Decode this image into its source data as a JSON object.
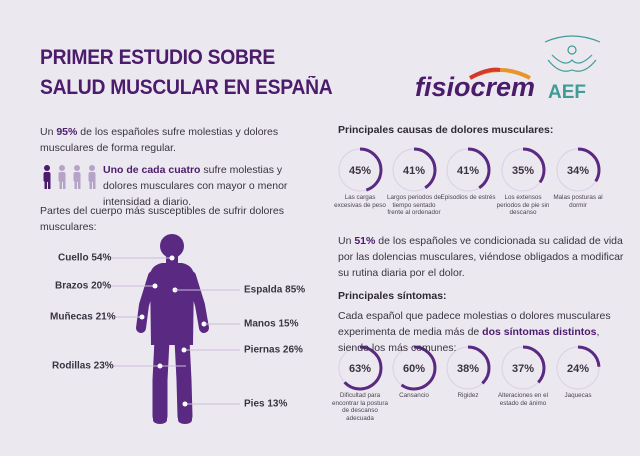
{
  "header": {
    "title_lines": [
      "PRIMER ESTUDIO SOBRE",
      "SALUD MUSCULAR EN ESPAÑA"
    ],
    "logos": [
      "fisiocrem",
      "AEF"
    ]
  },
  "intro": {
    "text": [
      "Un ",
      "95%",
      " de los españoles sufre molestias y dolores musculares de forma regular."
    ]
  },
  "quarter": {
    "text": [
      "Uno de cada cuatro",
      " sufre molestias y dolores musculares con mayor o menor intensidad a diario."
    ]
  },
  "body": {
    "heading": "Partes del cuerpo más susceptibles de sufrir dolores musculares:",
    "parts": [
      "Cuello 54%",
      "Brazos 20%",
      "Muñecas 21%",
      "Rodillas 23%",
      "Espalda 85%",
      "Manos 15%",
      "Piernas 26%",
      "Pies 13%"
    ]
  },
  "causes": {
    "heading": "Principales causas de dolores musculares:",
    "items": [
      {
        "value": 45,
        "label": "45%",
        "caption": "Las cargas excesivas de peso"
      },
      {
        "value": 41,
        "label": "41%",
        "caption": "Largos periodos de tiempo sentado frente al ordenador"
      },
      {
        "value": 41,
        "label": "41%",
        "caption": "Episodios de estrés"
      },
      {
        "value": 35,
        "label": "35%",
        "caption": "Los extensos periodos de pie sin descanso"
      },
      {
        "value": 34,
        "label": "34%",
        "caption": "Malas posturas al dormir"
      }
    ]
  },
  "impact": {
    "text": [
      "Un ",
      "51%",
      " de los españoles ve condicionada su calidad de vida por las dolencias musculares, viéndose obligados a modificar su rutina diaria por el dolor."
    ]
  },
  "symptoms": {
    "heading": "Principales síntomas:",
    "text": [
      "Cada español que padece molestias o dolores musculares experimenta de media más de ",
      "dos síntomas distintos",
      ", siendo los más comunes:"
    ],
    "items": [
      {
        "value": 63,
        "label": "63%",
        "caption": "Dificultad para encontrar la postura de descanso adecuada"
      },
      {
        "value": 60,
        "label": "60%",
        "caption": "Cansancio"
      },
      {
        "value": 38,
        "label": "38%",
        "caption": "Rigidez"
      },
      {
        "value": 37,
        "label": "37%",
        "caption": "Alteraciones en el estado de ánimo"
      },
      {
        "value": 24,
        "label": "24%",
        "caption": "Jaquecas"
      }
    ]
  }
}
